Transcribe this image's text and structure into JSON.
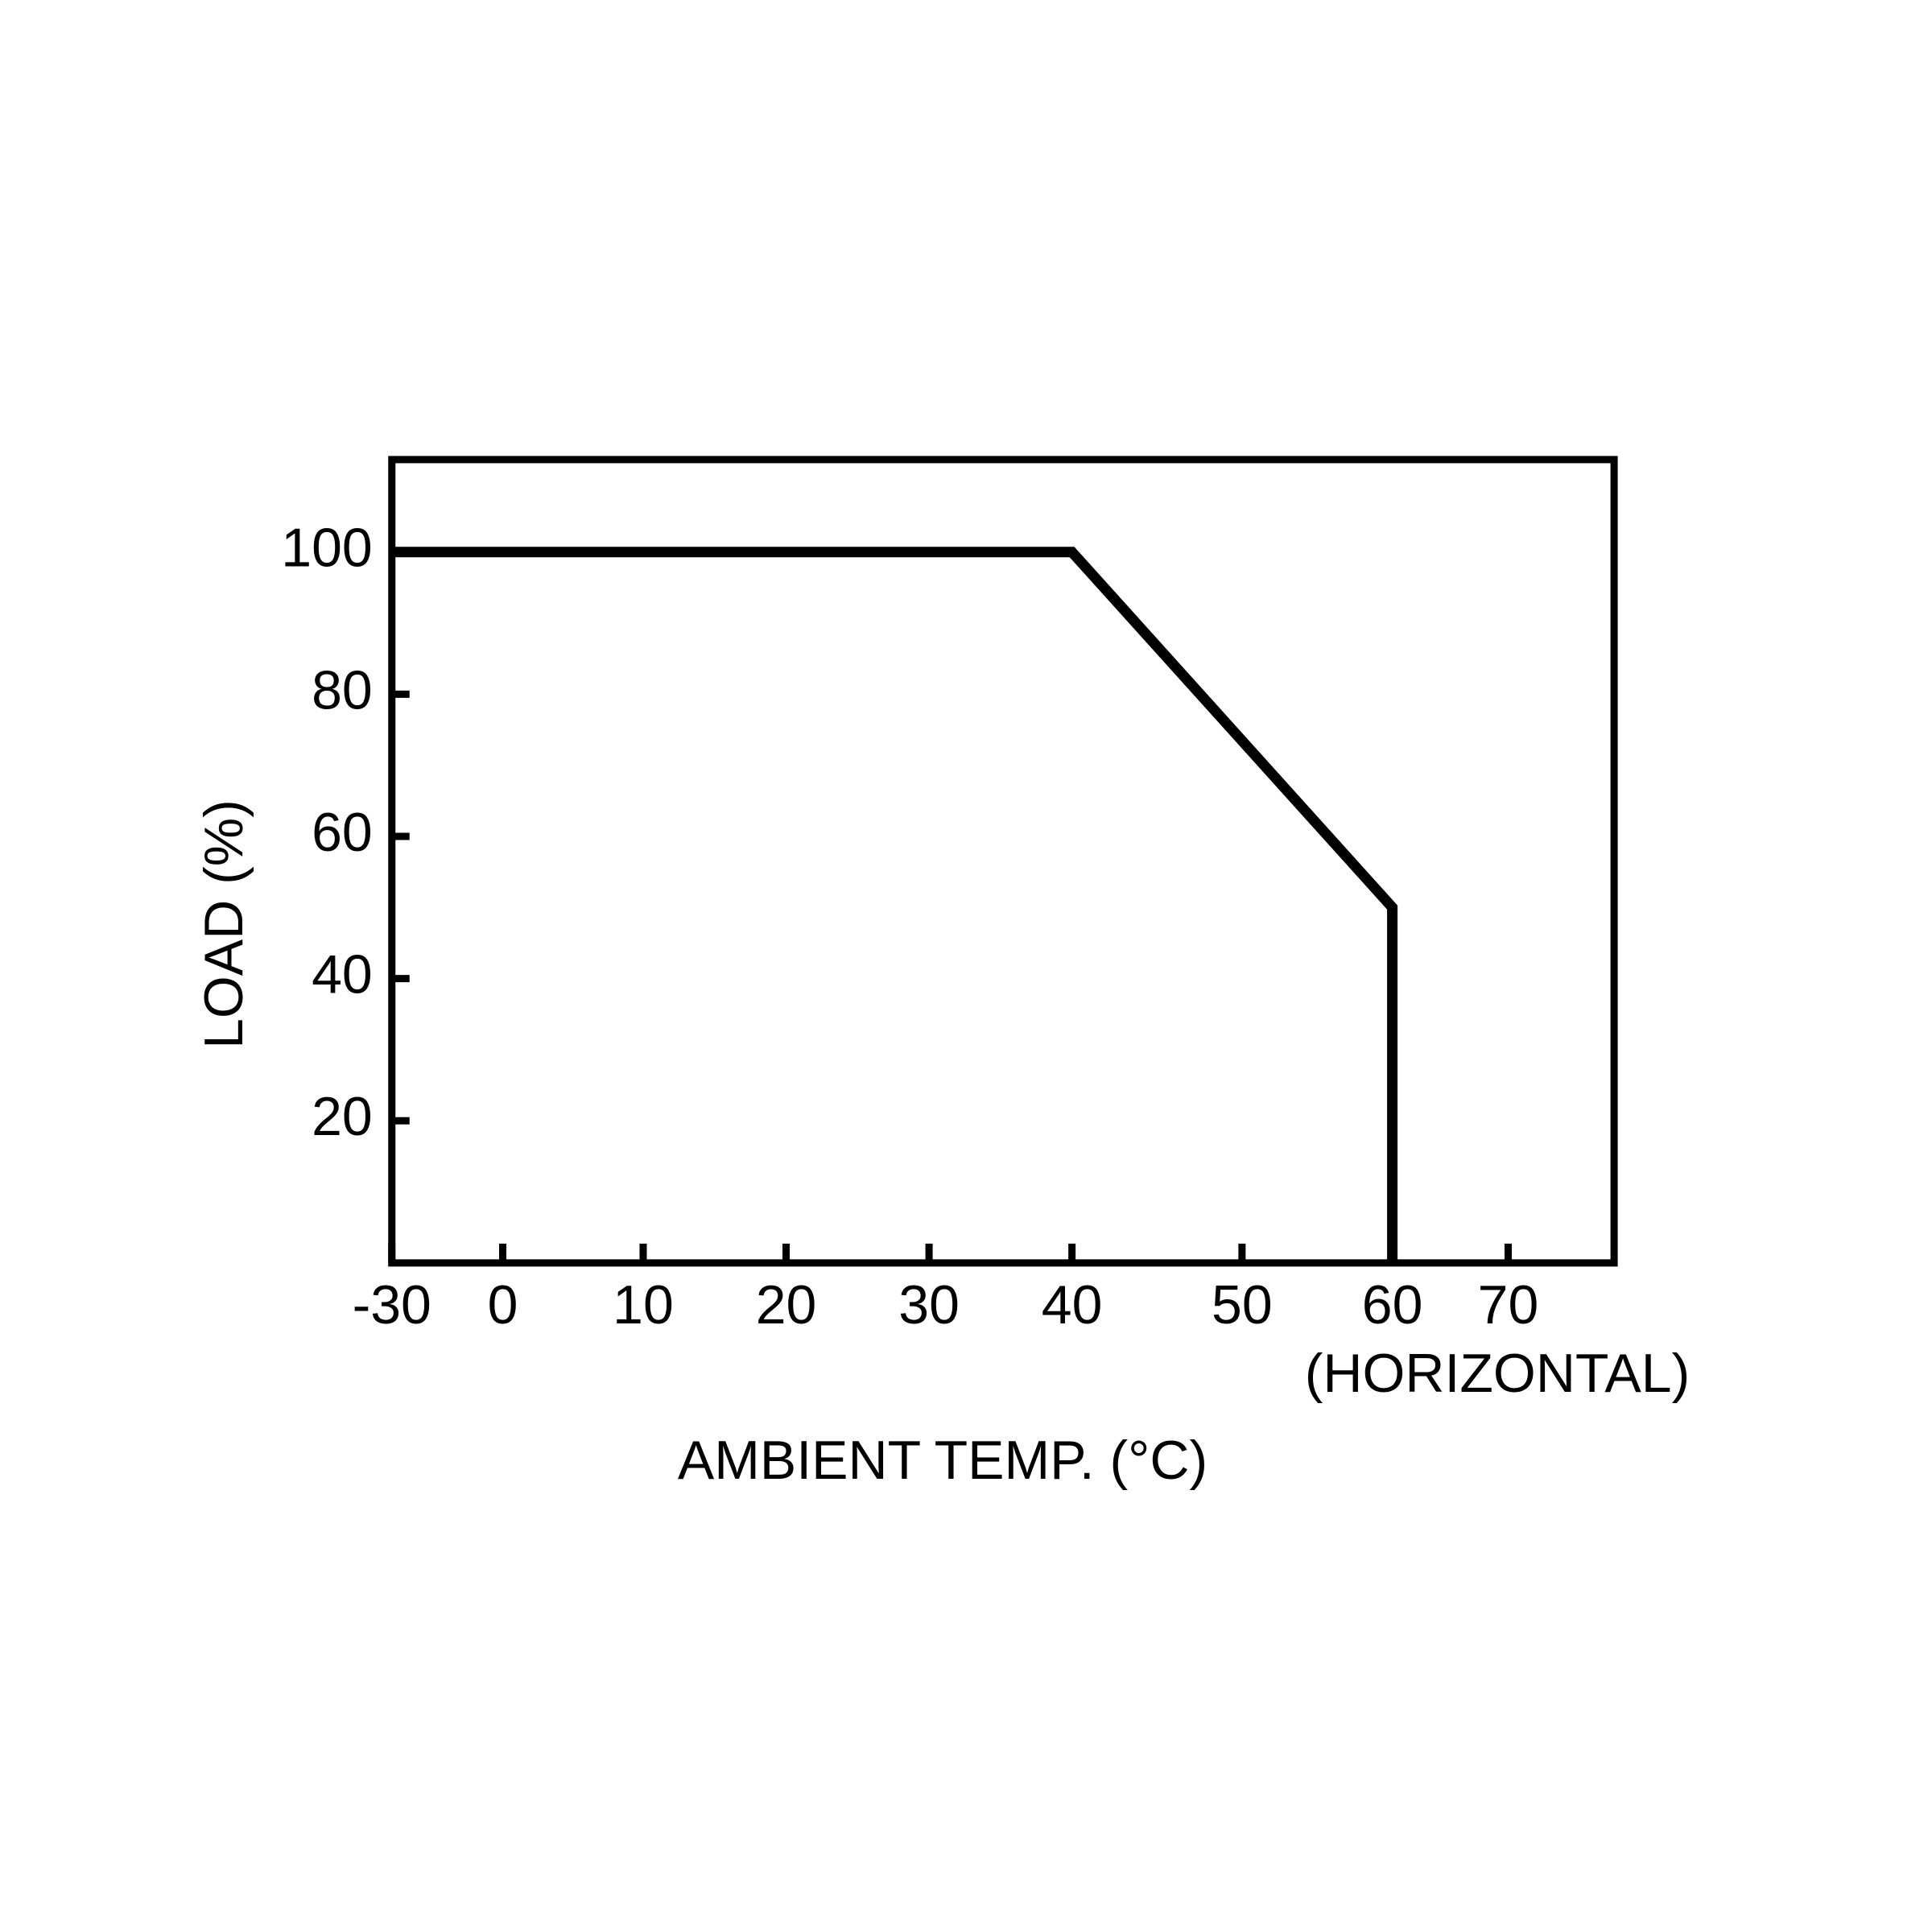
{
  "chart_data": {
    "type": "line",
    "x_label": "AMBIENT TEMP. (°C)",
    "y_label": "LOAD (%)",
    "annotation": "(HORIZONTAL)",
    "x": [
      -30,
      40,
      60,
      60
    ],
    "values": [
      100,
      100,
      50,
      0
    ],
    "color": "#000000",
    "xlim": [
      -30,
      77.5
    ],
    "ylim": [
      0,
      113
    ],
    "xticks": [
      -30,
      0,
      10,
      20,
      30,
      40,
      50,
      60,
      70
    ],
    "yticks": [
      20,
      40,
      60,
      80,
      100
    ]
  }
}
